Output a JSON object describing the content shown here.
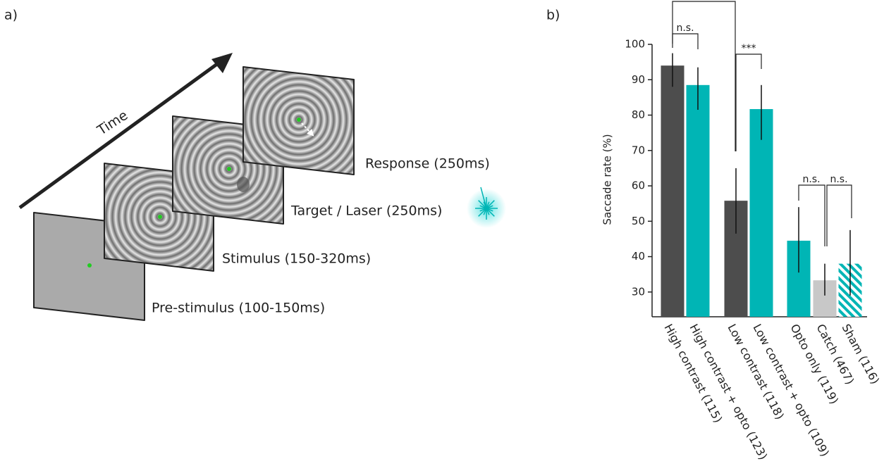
{
  "panel_a": {
    "label": "a)",
    "time_label": "Time",
    "frames": [
      "Pre-stimulus (100-150ms)",
      "Stimulus (150-320ms)",
      "Target / Laser (250ms)",
      "Response (250ms)"
    ]
  },
  "chart_data": {
    "type": "bar",
    "label": "b)",
    "y_label": "Saccade rate (%)",
    "categories": [
      "High contrast (115)",
      "High contrast + opto (123)",
      "Low contrast (118)",
      "Low contrast + opto (109)",
      "Opto only (119)",
      "Catch (467)",
      "Sham (116)"
    ],
    "values": [
      94,
      88.5,
      55.8,
      81.7,
      44.5,
      33.3,
      38
    ],
    "error_low": [
      88,
      81.5,
      46.5,
      73,
      35.5,
      29,
      29
    ],
    "error_high": [
      97.5,
      93.5,
      65,
      88.5,
      54,
      38,
      47.5
    ],
    "colors": [
      "#4d4d4d",
      "#00b5b5",
      "#4d4d4d",
      "#00b5b5",
      "#00b5b5",
      "#c8c8c8",
      "#00b5b5"
    ],
    "hatched": [
      false,
      false,
      false,
      false,
      false,
      false,
      true
    ],
    "ylim": [
      23,
      100
    ],
    "yticks": [
      30,
      40,
      50,
      60,
      70,
      80,
      90,
      100
    ],
    "annotations": [
      "n.s.",
      "***",
      "n.s.",
      "n.s."
    ]
  }
}
